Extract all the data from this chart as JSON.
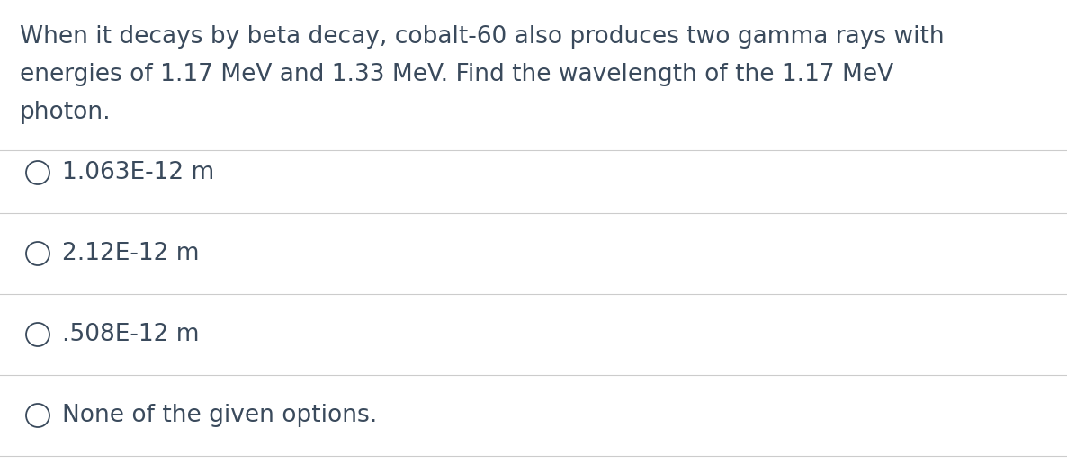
{
  "background_color": "#ffffff",
  "question_lines": [
    "When it decays by beta decay, cobalt-60 also produces two gamma rays with",
    "energies of 1.17 MeV and 1.33 MeV. Find the wavelength of the 1.17 MeV",
    "photon."
  ],
  "options": [
    "1.063E-12 m",
    "2.12E-12 m",
    ".508E-12 m",
    "None of the given options."
  ],
  "text_color": "#3a4a5c",
  "line_color": "#cccccc",
  "question_fontsize": 19,
  "option_fontsize": 19,
  "circle_edge_color": "#3a4a5c",
  "circle_face_color": "#ffffff",
  "fig_width": 11.86,
  "fig_height": 5.26,
  "dpi": 100
}
